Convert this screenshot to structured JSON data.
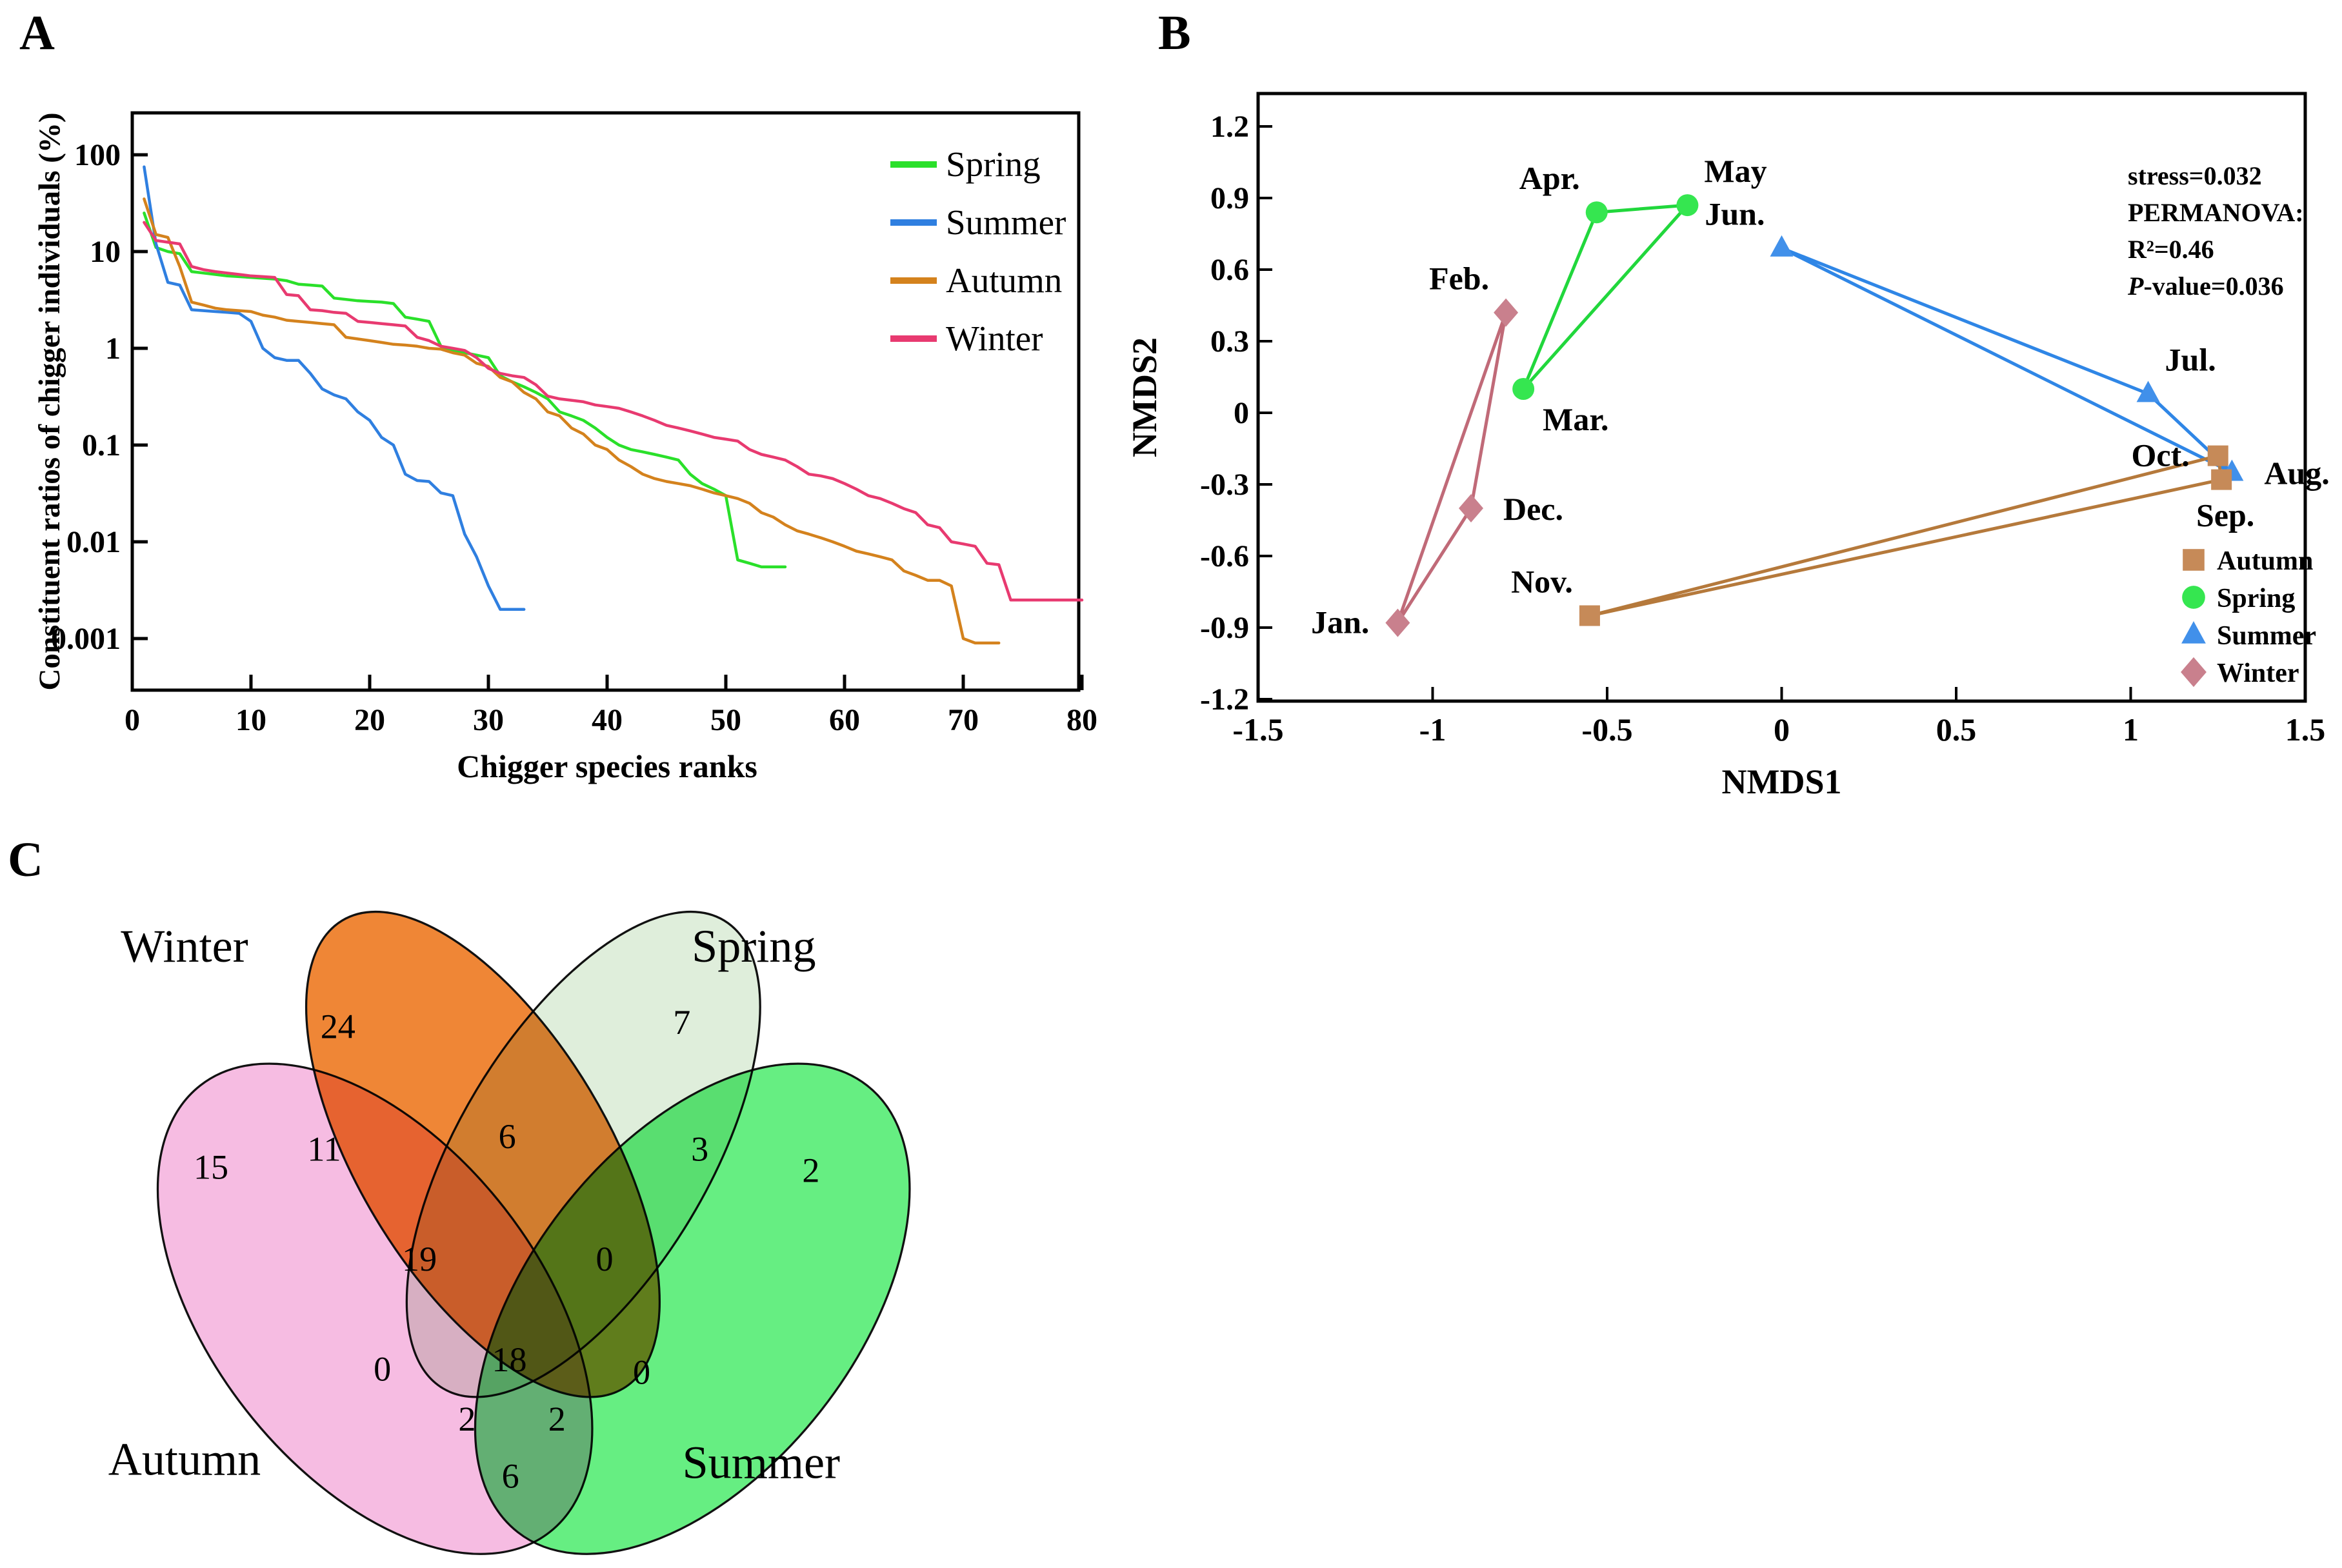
{
  "figure": {
    "panel_a_letter": "A",
    "panel_b_letter": "B",
    "panel_c_letter": "C"
  },
  "chart_data": [
    {
      "type": "line",
      "panel": "A",
      "xlabel": "Chigger species ranks",
      "ylabel": "Constituent ratios of chigger individuals (%)",
      "x_ticks": [
        0,
        10,
        20,
        30,
        40,
        50,
        60,
        70,
        80
      ],
      "y_ticks": [
        "100",
        "10",
        "1",
        "0.1",
        "0.01",
        "0.001"
      ],
      "xlim": [
        0,
        80
      ],
      "ylog": true,
      "legend_position": "top-right-inside",
      "series": [
        {
          "name": "Spring",
          "color": "#2ae02a",
          "values": [
            25,
            11,
            10,
            9.5,
            6.2,
            6.0,
            5.8,
            5.6,
            5.5,
            5.4,
            5.3,
            5.2,
            5.0,
            4.6,
            4.5,
            4.4,
            3.3,
            3.2,
            3.1,
            3.05,
            3.0,
            2.9,
            2.1,
            2.0,
            1.9,
            1.05,
            0.95,
            0.9,
            0.85,
            0.8,
            0.52,
            0.45,
            0.4,
            0.35,
            0.3,
            0.22,
            0.2,
            0.18,
            0.15,
            0.12,
            0.1,
            0.09,
            0.085,
            0.08,
            0.075,
            0.07,
            0.05,
            0.04,
            0.035,
            0.03,
            0.0065,
            0.006,
            0.0055,
            0.0055,
            0.0055
          ]
        },
        {
          "name": "Summer",
          "color": "#2f7fe0",
          "values": [
            75,
            12,
            4.8,
            4.5,
            2.5,
            2.45,
            2.4,
            2.35,
            2.3,
            1.9,
            1.0,
            0.8,
            0.75,
            0.75,
            0.55,
            0.38,
            0.33,
            0.3,
            0.22,
            0.18,
            0.12,
            0.1,
            0.05,
            0.043,
            0.042,
            0.032,
            0.03,
            0.012,
            0.007,
            0.0035,
            0.002,
            0.002,
            0.002
          ]
        },
        {
          "name": "Autumn",
          "color": "#d4821d",
          "values": [
            35,
            15,
            14,
            7,
            3.0,
            2.8,
            2.6,
            2.5,
            2.45,
            2.4,
            2.2,
            2.1,
            1.95,
            1.9,
            1.85,
            1.8,
            1.75,
            1.3,
            1.25,
            1.2,
            1.15,
            1.1,
            1.08,
            1.05,
            1.0,
            0.98,
            0.9,
            0.85,
            0.7,
            0.65,
            0.5,
            0.45,
            0.35,
            0.3,
            0.22,
            0.2,
            0.15,
            0.13,
            0.1,
            0.09,
            0.07,
            0.06,
            0.05,
            0.045,
            0.042,
            0.04,
            0.038,
            0.035,
            0.032,
            0.03,
            0.028,
            0.025,
            0.02,
            0.018,
            0.015,
            0.013,
            0.012,
            0.011,
            0.01,
            0.009,
            0.008,
            0.0075,
            0.007,
            0.0065,
            0.005,
            0.0045,
            0.004,
            0.004,
            0.0035,
            0.001,
            0.0009,
            0.0009,
            0.0009
          ]
        },
        {
          "name": "Winter",
          "color": "#e83a70",
          "values": [
            20,
            13,
            12.5,
            12,
            7,
            6.5,
            6.2,
            6.0,
            5.8,
            5.6,
            5.5,
            5.4,
            3.6,
            3.5,
            2.5,
            2.45,
            2.35,
            2.3,
            1.9,
            1.85,
            1.8,
            1.75,
            1.7,
            1.3,
            1.2,
            1.05,
            1.0,
            0.95,
            0.8,
            0.62,
            0.55,
            0.52,
            0.5,
            0.42,
            0.32,
            0.3,
            0.29,
            0.28,
            0.26,
            0.25,
            0.24,
            0.22,
            0.2,
            0.18,
            0.16,
            0.15,
            0.14,
            0.13,
            0.12,
            0.115,
            0.11,
            0.09,
            0.08,
            0.075,
            0.07,
            0.06,
            0.05,
            0.048,
            0.045,
            0.04,
            0.035,
            0.03,
            0.028,
            0.025,
            0.022,
            0.02,
            0.015,
            0.014,
            0.01,
            0.0095,
            0.009,
            0.006,
            0.0058,
            0.0025,
            0.0025,
            0.0025,
            0.0025,
            0.0025,
            0.0025,
            0.0025
          ]
        }
      ]
    },
    {
      "type": "scatter",
      "panel": "B",
      "xlabel": "NMDS1",
      "ylabel": "NMDS2",
      "xlim": [
        -1.5,
        1.5
      ],
      "ylim": [
        -1.2,
        1.2
      ],
      "x_ticks": [
        "-1.5",
        "-1",
        "-0.5",
        "0",
        "0.5",
        "1",
        "1.5"
      ],
      "y_ticks": [
        "1.2",
        "0.9",
        "0.6",
        "0.3",
        "0",
        "-0.3",
        "-0.6",
        "-0.9",
        "-1.2"
      ],
      "annotations": [
        "stress=0.032",
        "PERMANOVA:",
        "R²=0.46",
        "P-value=0.036"
      ],
      "groups": [
        {
          "name": "Winter",
          "marker": "diamond",
          "marker_color": "#c9808d",
          "line_color": "#c06a78",
          "points": [
            {
              "label": "Dec.",
              "x": -0.89,
              "y": -0.4,
              "labelPos": "right"
            },
            {
              "label": "Jan.",
              "x": -1.1,
              "y": -0.88,
              "labelPos": "left"
            },
            {
              "label": "Feb.",
              "x": -0.79,
              "y": 0.42,
              "labelPos": "above-left"
            }
          ]
        },
        {
          "name": "Spring",
          "marker": "circle",
          "marker_color": "#35e650",
          "line_color": "#21d73c",
          "points": [
            {
              "label": "Mar.",
              "x": -0.74,
              "y": 0.1,
              "labelPos": "below-right"
            },
            {
              "label": "Apr.",
              "x": -0.53,
              "y": 0.84,
              "labelPos": "above-left"
            },
            {
              "label": "May",
              "x": -0.27,
              "y": 0.87,
              "labelPos": "above-right"
            }
          ]
        },
        {
          "name": "Summer",
          "marker": "triangle",
          "marker_color": "#4190ea",
          "line_color": "#2f86e6",
          "points": [
            {
              "label": "Jun.",
              "x": 0.0,
              "y": 0.69,
              "labelPos": "above-left"
            },
            {
              "label": "Jul.",
              "x": 1.05,
              "y": 0.08,
              "labelPos": "above-right"
            },
            {
              "label": "Aug.",
              "x": 1.29,
              "y": -0.25,
              "labelPos": "right"
            }
          ]
        },
        {
          "name": "Autumn",
          "marker": "square",
          "marker_color": "#c68a58",
          "line_color": "#b5793b",
          "points": [
            {
              "label": "Sep.",
              "x": 1.26,
              "y": -0.28,
              "labelPos": "below"
            },
            {
              "label": "Oct.",
              "x": 1.25,
              "y": -0.18,
              "labelPos": "left"
            },
            {
              "label": "Nov.",
              "x": -0.55,
              "y": -0.85,
              "labelPos": "above-left"
            }
          ]
        }
      ],
      "legend": [
        {
          "name": "Autumn",
          "marker": "square",
          "color": "#c68a58"
        },
        {
          "name": "Spring",
          "marker": "circle",
          "color": "#35e650"
        },
        {
          "name": "Summer",
          "marker": "triangle",
          "color": "#4190ea"
        },
        {
          "name": "Winter",
          "marker": "diamond",
          "color": "#c9808d"
        }
      ]
    },
    {
      "type": "venn",
      "panel": "C",
      "sets": [
        {
          "name": "Winter",
          "color": "#ef8636"
        },
        {
          "name": "Spring",
          "color": "#dfeedb"
        },
        {
          "name": "Autumn",
          "color": "#f6bce2"
        },
        {
          "name": "Summer",
          "color": "#66ee82"
        }
      ],
      "regions": [
        {
          "key": "winter",
          "sets": [
            "Winter"
          ],
          "value": "24"
        },
        {
          "key": "spring",
          "sets": [
            "Spring"
          ],
          "value": "7"
        },
        {
          "key": "autumn",
          "sets": [
            "Autumn"
          ],
          "value": "15"
        },
        {
          "key": "summer",
          "sets": [
            "Summer"
          ],
          "value": "2"
        },
        {
          "key": "winter_autumn",
          "sets": [
            "Winter",
            "Autumn"
          ],
          "value": "11"
        },
        {
          "key": "winter_spring",
          "sets": [
            "Winter",
            "Spring"
          ],
          "value": "6"
        },
        {
          "key": "spring_summer",
          "sets": [
            "Spring",
            "Summer"
          ],
          "value": "3"
        },
        {
          "key": "autumn_spring",
          "sets": [
            "Autumn",
            "Spring"
          ],
          "value": "0"
        },
        {
          "key": "winter_summer",
          "sets": [
            "Winter",
            "Summer"
          ],
          "value": "0"
        },
        {
          "key": "autumn_winter_spring",
          "sets": [
            "Autumn",
            "Winter",
            "Spring"
          ],
          "value": "19"
        },
        {
          "key": "winter_spring_summer",
          "sets": [
            "Winter",
            "Spring",
            "Summer"
          ],
          "value": "0"
        },
        {
          "key": "autumn_spring_summer",
          "sets": [
            "Autumn",
            "Spring",
            "Summer"
          ],
          "value": "2"
        },
        {
          "key": "autumn_winter_summer",
          "sets": [
            "Autumn",
            "Winter",
            "Summer"
          ],
          "value": "2"
        },
        {
          "key": "all",
          "sets": [
            "Autumn",
            "Winter",
            "Spring",
            "Summer"
          ],
          "value": "18"
        },
        {
          "key": "autumn_summer",
          "sets": [
            "Autumn",
            "Summer"
          ],
          "value": "6"
        }
      ]
    }
  ]
}
